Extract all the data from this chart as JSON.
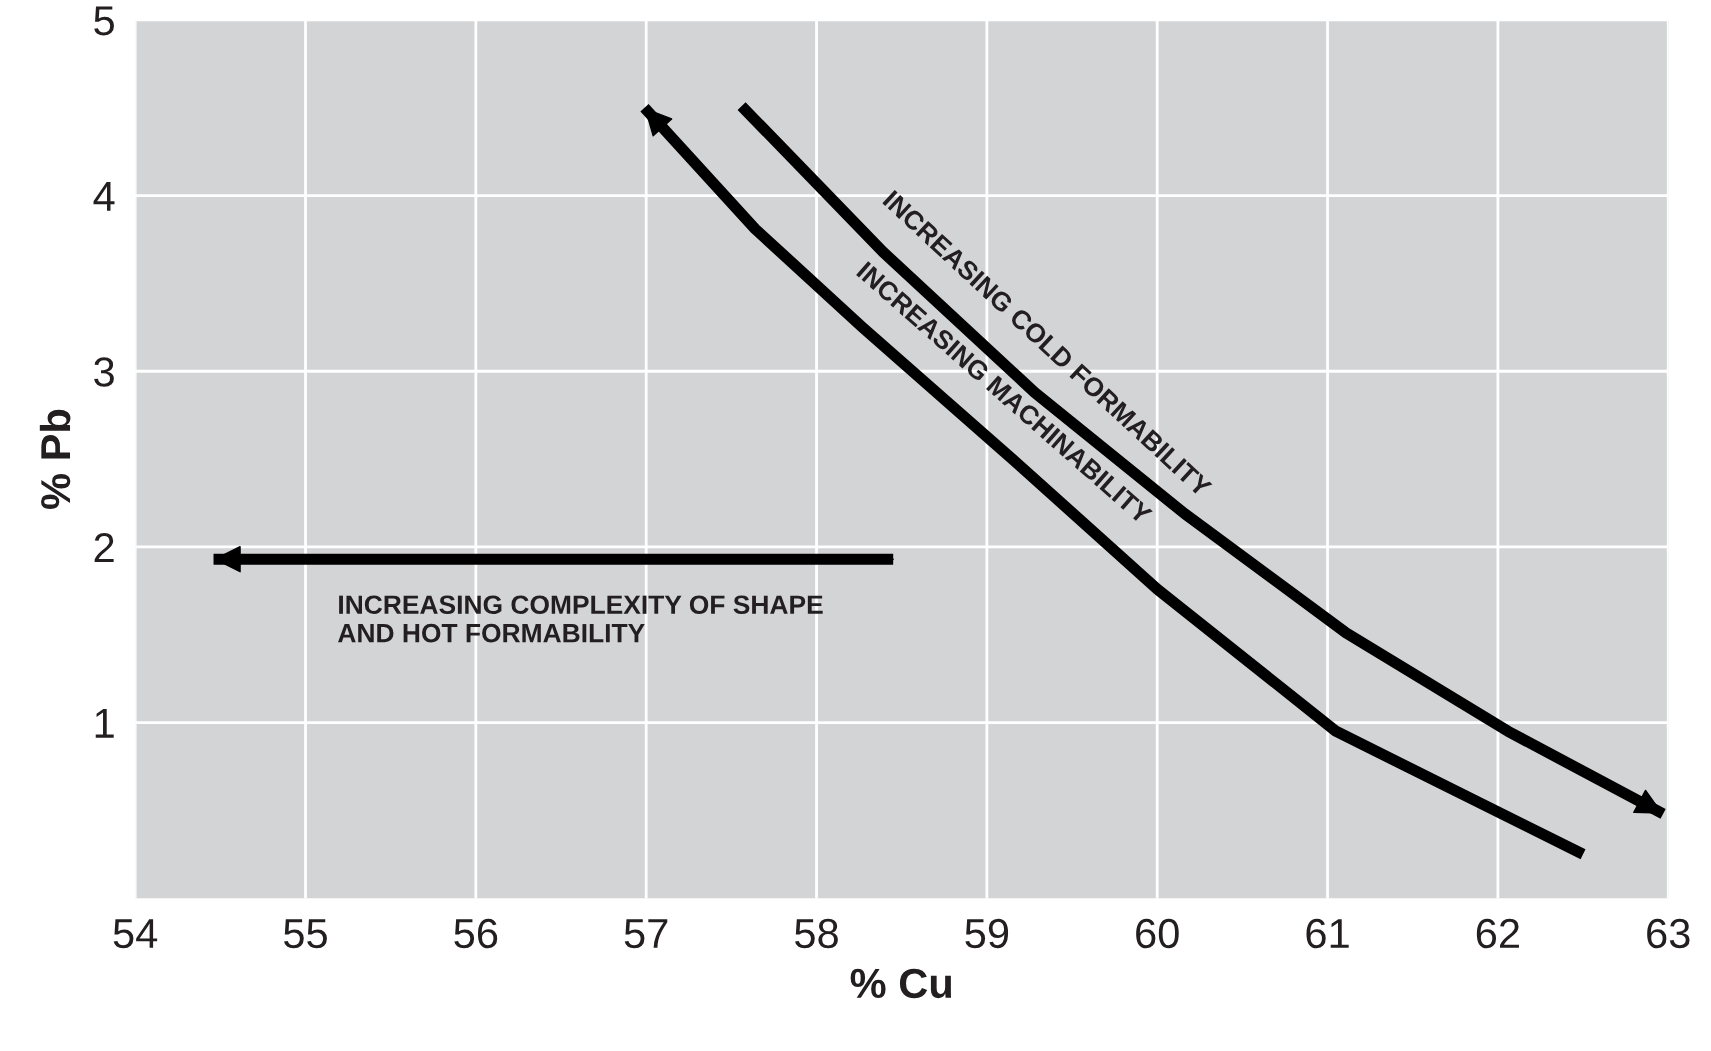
{
  "chart_data": {
    "type": "line",
    "xlabel": "% Cu",
    "ylabel": "% Pb",
    "xlim": [
      54,
      63
    ],
    "xticks": [
      54,
      55,
      56,
      57,
      58,
      59,
      60,
      61,
      62,
      63
    ],
    "ylim": [
      0,
      5
    ],
    "yticks": [
      1,
      2,
      3,
      4,
      5
    ],
    "grid": true,
    "marker": "none",
    "line_style": "solid",
    "series": [
      {
        "color": "#000000",
        "x": [
          58.45,
          54.46
        ],
        "values": [
          1.93,
          1.93
        ]
      },
      {
        "color": "#000000",
        "x": [
          62.5,
          61.05,
          60.0,
          59.15,
          58.27,
          57.64,
          56.99
        ],
        "values": [
          0.25,
          0.95,
          1.76,
          2.5,
          3.25,
          3.81,
          4.5
        ]
      },
      {
        "color": "#000000",
        "x": [
          57.56,
          58.39,
          59.28,
          60.16,
          61.11,
          62.06,
          62.97
        ],
        "values": [
          4.51,
          3.68,
          2.88,
          2.19,
          1.51,
          0.95,
          0.48
        ]
      }
    ],
    "annotations": [
      "INCREASING COMPLEXITY OF SHAPE\nAND HOT FORMABILITY",
      "INCREASING MACHINABILITY",
      "INCREASING COLD FORMABILITY"
    ]
  }
}
